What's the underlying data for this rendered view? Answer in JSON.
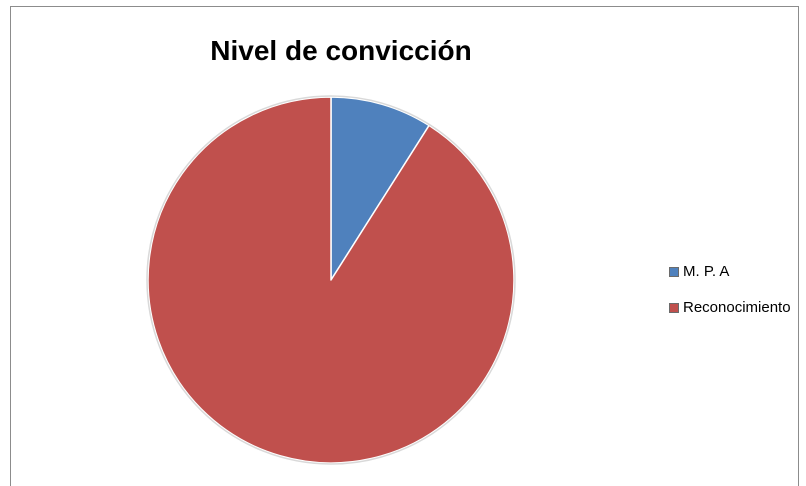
{
  "chart_data": {
    "type": "pie",
    "title": "Nivel de convicción",
    "categories": [
      "M. P. A",
      "Reconocimiento"
    ],
    "values": [
      9,
      91
    ],
    "colors": [
      "#4f81bd",
      "#c0504d"
    ],
    "legend_position": "right"
  }
}
